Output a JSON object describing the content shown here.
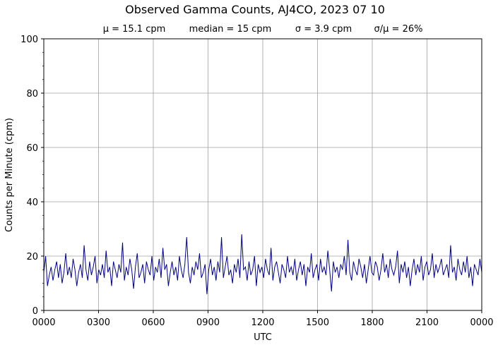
{
  "chart_data": {
    "type": "line",
    "title": "Observed Gamma Counts, AJ4CO, 2023 07 10",
    "subtitle": [
      "μ = 15.1 cpm",
      "median = 15 cpm",
      "σ = 3.9 cpm",
      "σ/μ = 26%"
    ],
    "xlabel": "UTC",
    "ylabel": "Counts per Minute (cpm)",
    "xlim": [
      0,
      24
    ],
    "ylim": [
      0,
      100
    ],
    "x_ticks": [
      0,
      3,
      6,
      9,
      12,
      15,
      18,
      21,
      24
    ],
    "x_tick_labels": [
      "0000",
      "0300",
      "0600",
      "0900",
      "1200",
      "1500",
      "1800",
      "2100",
      "0000"
    ],
    "y_ticks": [
      0,
      20,
      40,
      60,
      80,
      100
    ],
    "y_tick_labels": [
      "0",
      "20",
      "40",
      "60",
      "80",
      "100"
    ],
    "grid": true,
    "line_color": "#000080",
    "series": [
      {
        "x_unit": "hours UTC",
        "values": [
          14,
          20,
          9,
          13,
          16,
          11,
          15,
          18,
          12,
          17,
          10,
          14,
          21,
          13,
          16,
          12,
          19,
          15,
          9,
          14,
          17,
          12,
          24,
          15,
          11,
          18,
          13,
          16,
          20,
          10,
          15,
          13,
          17,
          12,
          22,
          14,
          16,
          9,
          18,
          15,
          12,
          17,
          14,
          25,
          11,
          16,
          13,
          19,
          15,
          8,
          16,
          21,
          12,
          14,
          17,
          10,
          18,
          15,
          13,
          20,
          11,
          16,
          14,
          19,
          12,
          23,
          15,
          17,
          9,
          14,
          18,
          13,
          16,
          11,
          20,
          15,
          12,
          17,
          27,
          14,
          10,
          16,
          13,
          18,
          15,
          21,
          12,
          14,
          17,
          6,
          15,
          19,
          13,
          16,
          11,
          18,
          14,
          27,
          12,
          16,
          20,
          13,
          15,
          10,
          17,
          14,
          19,
          12,
          28,
          15,
          16,
          11,
          18,
          13,
          15,
          20,
          9,
          17,
          14,
          16,
          12,
          19,
          15,
          13,
          23,
          11,
          16,
          18,
          14,
          10,
          17,
          15,
          12,
          20,
          14,
          16,
          13,
          19,
          11,
          15,
          18,
          13,
          17,
          9,
          16,
          14,
          21,
          12,
          15,
          17,
          11,
          19,
          14,
          16,
          13,
          22,
          15,
          7,
          18,
          14,
          16,
          12,
          17,
          15,
          20,
          13,
          26,
          14,
          11,
          18,
          15,
          13,
          19,
          16,
          12,
          17,
          10,
          15,
          20,
          14,
          13,
          18,
          16,
          11,
          15,
          21,
          14,
          17,
          12,
          19,
          15,
          13,
          16,
          22,
          10,
          17,
          14,
          18,
          12,
          16,
          9,
          15,
          19,
          13,
          17,
          14,
          20,
          11,
          16,
          18,
          13,
          15,
          21,
          12,
          17,
          14,
          16,
          19,
          13,
          15,
          17,
          12,
          24,
          14,
          16,
          11,
          19,
          15,
          13,
          18,
          14,
          20,
          12,
          16,
          9,
          17,
          15,
          13,
          19,
          14
        ]
      }
    ]
  }
}
